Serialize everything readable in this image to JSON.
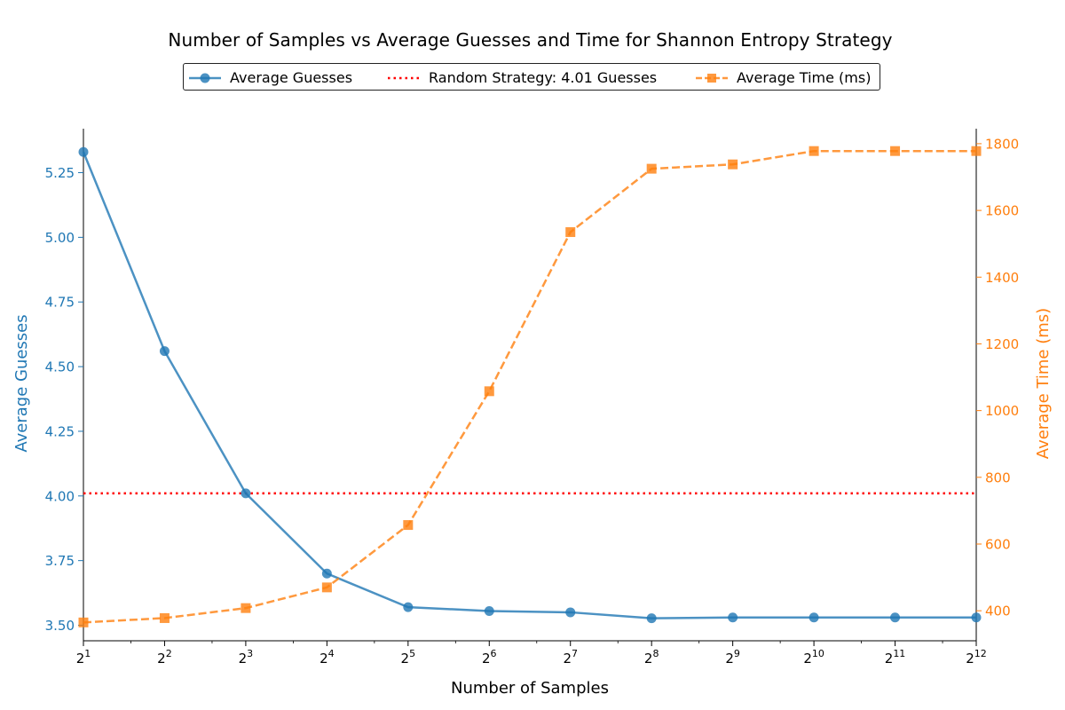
{
  "chart_data": {
    "type": "line",
    "title": "Number of Samples vs Average Guesses and Time for Shannon Entropy Strategy",
    "xlabel": "Number of Samples",
    "x_scale": "log2",
    "x": [
      2,
      4,
      8,
      16,
      32,
      64,
      128,
      256,
      512,
      1024,
      2048,
      4096
    ],
    "x_tick_labels": [
      {
        "base": "2",
        "exp": "1"
      },
      {
        "base": "2",
        "exp": "2"
      },
      {
        "base": "2",
        "exp": "3"
      },
      {
        "base": "2",
        "exp": "4"
      },
      {
        "base": "2",
        "exp": "5"
      },
      {
        "base": "2",
        "exp": "6"
      },
      {
        "base": "2",
        "exp": "7"
      },
      {
        "base": "2",
        "exp": "8"
      },
      {
        "base": "2",
        "exp": "9"
      },
      {
        "base": "2",
        "exp": "10"
      },
      {
        "base": "2",
        "exp": "11"
      },
      {
        "base": "2",
        "exp": "12"
      }
    ],
    "xlim": [
      2,
      4096
    ],
    "y_left": {
      "label": "Average Guesses",
      "color": "#1f77b4",
      "ylim": [
        3.44,
        5.42
      ],
      "ticks": [
        "3.50",
        "3.75",
        "4.00",
        "4.25",
        "4.50",
        "4.75",
        "5.00",
        "5.25"
      ]
    },
    "y_right": {
      "label": "Average Time (ms)",
      "color": "#ff7f0e",
      "ylim": [
        310,
        1845
      ],
      "ticks": [
        "400",
        "600",
        "800",
        "1000",
        "1200",
        "1400",
        "1600",
        "1800"
      ]
    },
    "series": [
      {
        "name": "Average Guesses",
        "axis": "left",
        "color": "#1f77b4",
        "line_style": "solid",
        "marker": "circle",
        "values": [
          5.33,
          4.56,
          4.01,
          3.7,
          3.57,
          3.555,
          3.55,
          3.527,
          3.53,
          3.53,
          3.53,
          3.53
        ]
      },
      {
        "name": "Average Time (ms)",
        "axis": "right",
        "color": "#ff7f0e",
        "line_style": "dashed",
        "marker": "square",
        "values": [
          365,
          378,
          408,
          470,
          657,
          1058,
          1535,
          1725,
          1738,
          1778,
          1778,
          1778
        ]
      }
    ],
    "reference_lines": [
      {
        "name": "Random Strategy: 4.01 Guesses",
        "axis": "left",
        "value": 4.01,
        "color": "#ff0000",
        "line_style": "dotted"
      }
    ],
    "legend_position": "top-center",
    "grid": false
  }
}
